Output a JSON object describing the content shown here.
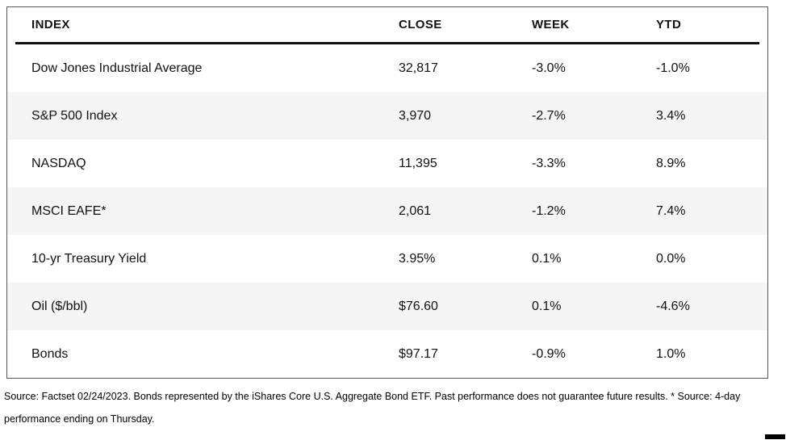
{
  "chart_data": {
    "type": "table",
    "columns": [
      "INDEX",
      "CLOSE",
      "WEEK",
      "YTD"
    ],
    "rows": [
      {
        "index": "Dow Jones Industrial Average",
        "close": "32,817",
        "week": "-3.0%",
        "ytd": "-1.0%"
      },
      {
        "index": "S&P 500 Index",
        "close": "3,970",
        "week": "-2.7%",
        "ytd": "3.4%"
      },
      {
        "index": "NASDAQ",
        "close": "11,395",
        "week": "-3.3%",
        "ytd": "8.9%"
      },
      {
        "index": "MSCI EAFE*",
        "close": "2,061",
        "week": "-1.2%",
        "ytd": "7.4%"
      },
      {
        "index": "10-yr Treasury Yield",
        "close": "3.95%",
        "week": "0.1%",
        "ytd": "0.0%"
      },
      {
        "index": "Oil ($/bbl)",
        "close": "$76.60",
        "week": "0.1%",
        "ytd": "-4.6%"
      },
      {
        "index": "Bonds",
        "close": "$97.17",
        "week": "-0.9%",
        "ytd": "1.0%"
      }
    ],
    "layout": {
      "stripe_rows": [
        1,
        3,
        5
      ],
      "stripe_color": "#f5f5f5",
      "header_rule_color": "#111111",
      "border_color": "#565656",
      "text_color": "#111111"
    }
  },
  "footnote": {
    "line1": "Source: Factset 02/24/2023. Bonds represented by the iShares Core U.S. Aggregate Bond ETF. Past performance does not guarantee future results. * Source: 4-day",
    "line2": "performance ending on Thursday."
  }
}
